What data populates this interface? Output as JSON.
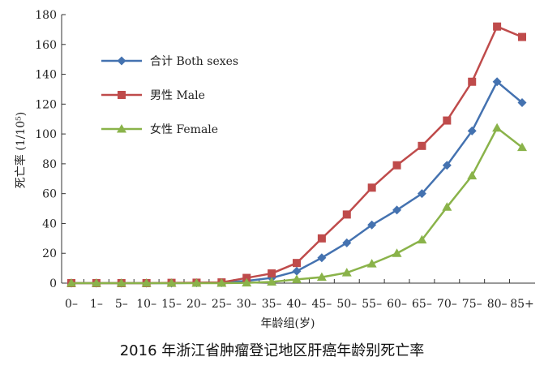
{
  "caption": "2016 年浙江省肿瘤登记地区肝癌年龄别死亡率",
  "chart_data": {
    "type": "line",
    "xlabel": "年龄组(岁)",
    "ylabel": "死亡率 (1/10⁵)",
    "ylim": [
      0,
      180
    ],
    "yticks": [
      0,
      20,
      40,
      60,
      80,
      100,
      120,
      140,
      160,
      180
    ],
    "grid": false,
    "legend": "top-left",
    "categories": [
      "0–",
      "1–",
      "5–",
      "10–",
      "15–",
      "20–",
      "25–",
      "30–",
      "35–",
      "40–",
      "45–",
      "50–",
      "55–",
      "60–",
      "65–",
      "70–",
      "75–",
      "80–",
      "85+"
    ],
    "series": [
      {
        "name": "合计 Both sexes",
        "marker": "diamond",
        "color": "#4472b0",
        "values": [
          0,
          0,
          0,
          0,
          0,
          0.2,
          0.3,
          1.5,
          3.5,
          8,
          17,
          27,
          39,
          49,
          60,
          79,
          102,
          135,
          121
        ]
      },
      {
        "name": "男性 Male",
        "marker": "square",
        "color": "#bf4b4b",
        "values": [
          0,
          0,
          0,
          0,
          0.2,
          0.3,
          0.5,
          3.5,
          6.5,
          13.5,
          30,
          46,
          64,
          79,
          92,
          109,
          135,
          172,
          165
        ]
      },
      {
        "name": "女性 Female",
        "marker": "triangle",
        "color": "#8ab34a",
        "values": [
          0,
          0,
          0,
          0,
          0,
          0,
          0,
          0.2,
          0.8,
          2.5,
          4,
          7,
          13,
          20,
          29,
          51,
          72,
          104,
          91
        ]
      }
    ]
  }
}
